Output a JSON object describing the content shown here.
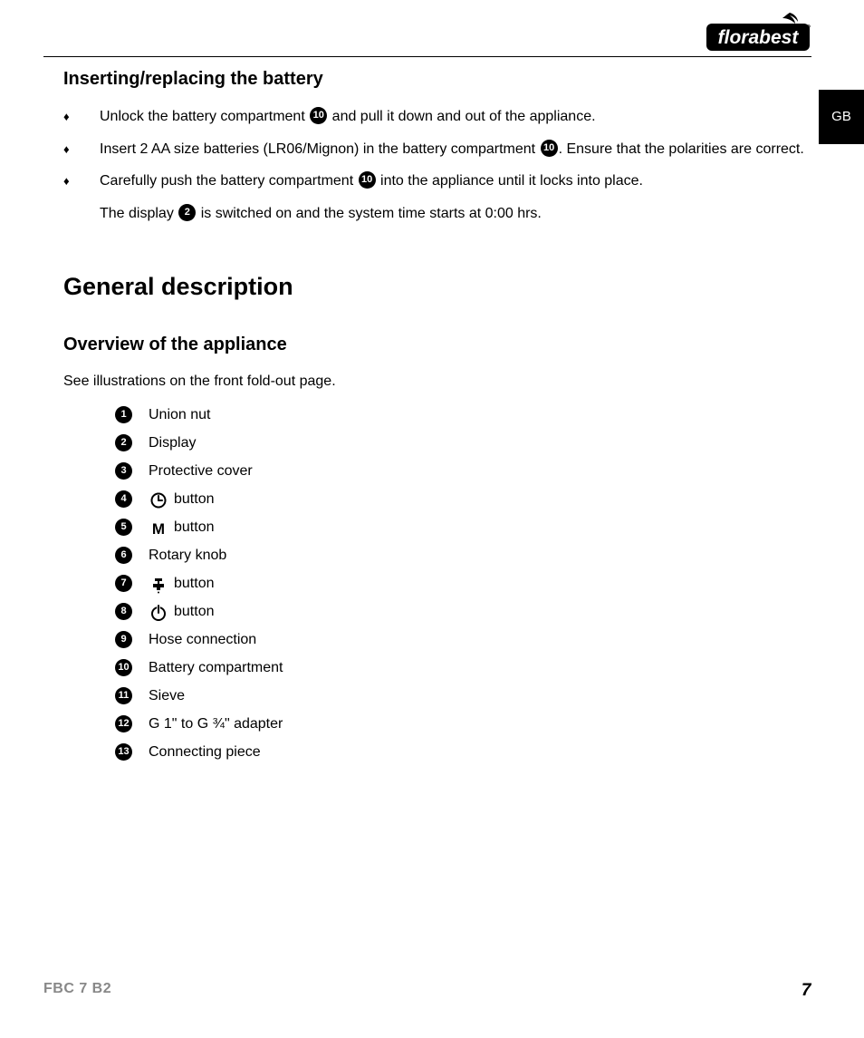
{
  "brand": "florabest",
  "lang_tab": "GB",
  "section1_title": "Inserting/replacing the battery",
  "bullets": [
    {
      "pre": "Unlock the battery compartment ",
      "ref": "10",
      "post": " and pull it down and out of the appliance."
    },
    {
      "pre": "Insert 2 AA size batteries (LR06/Mignon) in the battery compartment ",
      "ref": "10",
      "post": ". Ensure that the polarities are correct."
    },
    {
      "pre": "Carefully push the battery compartment ",
      "ref": "10",
      "post": " into the appliance until it locks into place."
    }
  ],
  "subline": {
    "pre": "The display ",
    "ref": "2",
    "post": " is switched on and the system time starts at 0:00 hrs."
  },
  "section2_title": "General description",
  "section3_title": "Overview of the appliance",
  "intro": "See illustrations on the front fold-out page.",
  "parts": [
    {
      "n": "1",
      "icon": null,
      "label": "Union nut"
    },
    {
      "n": "2",
      "icon": null,
      "label": "Display"
    },
    {
      "n": "3",
      "icon": null,
      "label": "Protective cover"
    },
    {
      "n": "4",
      "icon": "clock",
      "label": "button"
    },
    {
      "n": "5",
      "icon": "m",
      "label": "button"
    },
    {
      "n": "6",
      "icon": null,
      "label": "Rotary knob"
    },
    {
      "n": "7",
      "icon": "tap",
      "label": "button"
    },
    {
      "n": "8",
      "icon": "power",
      "label": "button"
    },
    {
      "n": "9",
      "icon": null,
      "label": "Hose connection"
    },
    {
      "n": "10",
      "icon": null,
      "label": "Battery compartment"
    },
    {
      "n": "11",
      "icon": null,
      "label": "Sieve"
    },
    {
      "n": "12",
      "icon": null,
      "label": "G 1\" to G ¾\" adapter"
    },
    {
      "n": "13",
      "icon": null,
      "label": "Connecting piece"
    }
  ],
  "footer_model": "FBC 7 B2",
  "footer_page": "7",
  "colors": {
    "text": "#000000",
    "bg": "#ffffff",
    "muted": "#888888"
  }
}
